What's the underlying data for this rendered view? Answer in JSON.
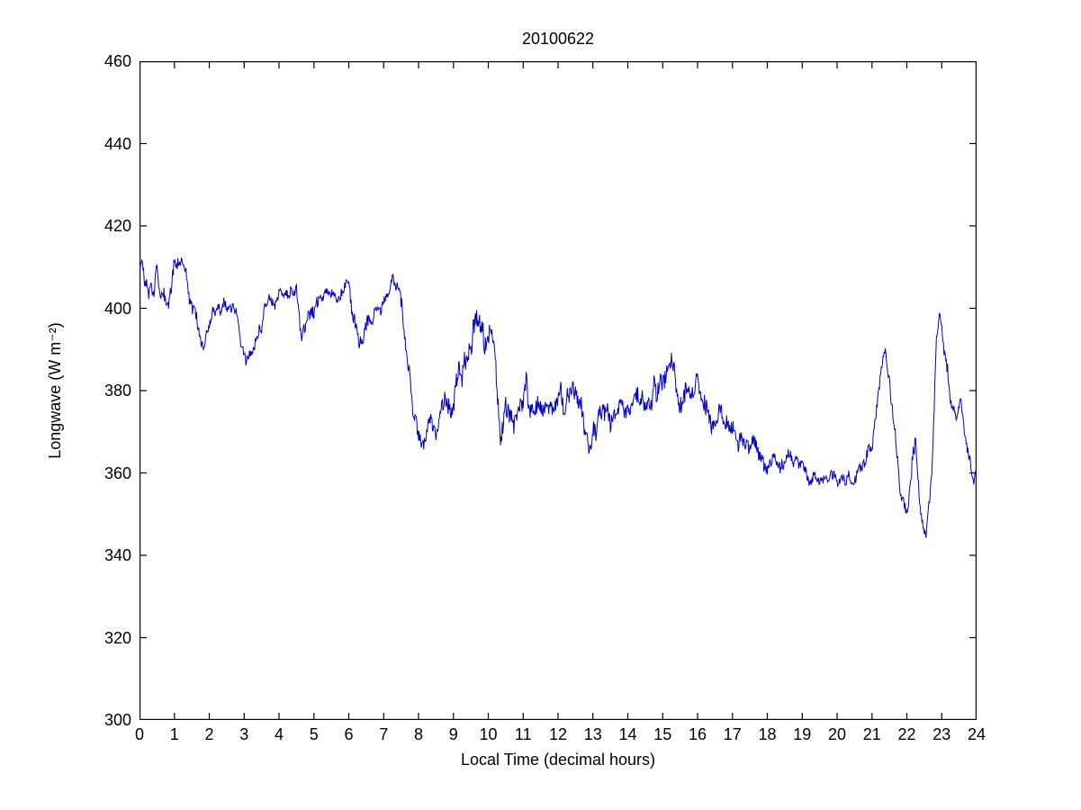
{
  "chart_data": {
    "type": "line",
    "title": "20100622",
    "xlabel": "Local Time (decimal hours)",
    "ylabel": "Longwave (W m⁻²)",
    "xlim": [
      0,
      24
    ],
    "ylim": [
      300,
      460
    ],
    "xticks": [
      0,
      1,
      2,
      3,
      4,
      5,
      6,
      7,
      8,
      9,
      10,
      11,
      12,
      13,
      14,
      15,
      16,
      17,
      18,
      19,
      20,
      21,
      22,
      23,
      24
    ],
    "yticks": [
      300,
      320,
      340,
      360,
      380,
      400,
      420,
      440,
      460
    ],
    "grid": false,
    "legend_position": "none",
    "line_color": "#0000CD",
    "axis_color": "#000000",
    "background": "#FFFFFF",
    "series": [
      {
        "name": "Longwave",
        "representation": "trend_anchors_with_noise_band",
        "anchors_x": [
          0,
          0.3,
          0.5,
          0.8,
          1.0,
          1.15,
          1.4,
          1.6,
          1.85,
          2.1,
          2.4,
          2.6,
          2.8,
          3.05,
          3.3,
          3.5,
          3.7,
          3.9,
          4.1,
          4.3,
          4.5,
          4.65,
          4.8,
          5.0,
          5.2,
          5.4,
          5.6,
          5.8,
          6.0,
          6.15,
          6.3,
          6.5,
          6.7,
          6.9,
          7.1,
          7.3,
          7.45,
          7.6,
          7.8,
          8.0,
          8.15,
          8.3,
          8.5,
          8.7,
          8.9,
          9.1,
          9.3,
          9.5,
          9.7,
          9.9,
          10.05,
          10.2,
          10.35,
          10.5,
          10.7,
          10.9,
          11.1,
          11.3,
          11.5,
          11.7,
          11.9,
          12.1,
          12.3,
          12.5,
          12.7,
          12.9,
          13.1,
          13.3,
          13.5,
          13.7,
          13.9,
          14.1,
          14.3,
          14.5,
          14.7,
          14.9,
          15.1,
          15.25,
          15.4,
          15.6,
          15.8,
          16.0,
          16.2,
          16.4,
          16.6,
          16.8,
          17.0,
          17.2,
          17.4,
          17.6,
          17.8,
          18.0,
          18.2,
          18.4,
          18.6,
          18.8,
          19.0,
          19.2,
          19.4,
          19.6,
          19.8,
          20.0,
          20.2,
          20.4,
          20.6,
          20.8,
          21.0,
          21.2,
          21.35,
          21.5,
          21.65,
          21.8,
          22.0,
          22.1,
          22.25,
          22.4,
          22.55,
          22.7,
          22.85,
          22.95,
          23.1,
          23.25,
          23.4,
          23.55,
          23.7,
          23.85,
          24.0
        ],
        "anchors_y": [
          409,
          403,
          408,
          400,
          410,
          413,
          405,
          398,
          390,
          400,
          400,
          401,
          398,
          387,
          390,
          396,
          403,
          402,
          404,
          403,
          404,
          391,
          397,
          399,
          402,
          404,
          403,
          405,
          406,
          398,
          390,
          396,
          398,
          400,
          404,
          407,
          405,
          393,
          378,
          370,
          366,
          372,
          370,
          375,
          378,
          380,
          388,
          392,
          396,
          394,
          398,
          390,
          370,
          375,
          372,
          378,
          380,
          375,
          378,
          376,
          375,
          378,
          376,
          380,
          374,
          366,
          372,
          376,
          372,
          374,
          376,
          375,
          378,
          376,
          378,
          380,
          384,
          390,
          380,
          378,
          380,
          382,
          376,
          374,
          376,
          372,
          370,
          368,
          366,
          368,
          364,
          362,
          364,
          362,
          364,
          362,
          361,
          359,
          358,
          358,
          359,
          358,
          359,
          358,
          360,
          364,
          366,
          378,
          389,
          383,
          370,
          355,
          351,
          357,
          368,
          350,
          345,
          360,
          390,
          398,
          388,
          378,
          375,
          377,
          368,
          360,
          359
        ],
        "noise_band": [
          3,
          4,
          3,
          4,
          3,
          2,
          3,
          3,
          2,
          2,
          2,
          2,
          2,
          2,
          2,
          3,
          2,
          2,
          2,
          2,
          2,
          3,
          3,
          3,
          2,
          2,
          2,
          2,
          2,
          3,
          2,
          3,
          2,
          2,
          2,
          2,
          3,
          3,
          3,
          3,
          2,
          3,
          3,
          3,
          4,
          4,
          5,
          5,
          4,
          5,
          4,
          5,
          4,
          5,
          4,
          4,
          4,
          4,
          4,
          4,
          4,
          4,
          4,
          3,
          4,
          3,
          4,
          4,
          3,
          3,
          3,
          3,
          4,
          3,
          4,
          4,
          4,
          3,
          4,
          4,
          4,
          3,
          4,
          4,
          3,
          3,
          3,
          3,
          3,
          3,
          3,
          3,
          2,
          3,
          2,
          2,
          2,
          2,
          2,
          2,
          2,
          2,
          2,
          2,
          2,
          3,
          2,
          3,
          2,
          3,
          3,
          2,
          2,
          3,
          3,
          2,
          1,
          3,
          3,
          2,
          3,
          2,
          2,
          2,
          2,
          2,
          2
        ]
      }
    ]
  }
}
